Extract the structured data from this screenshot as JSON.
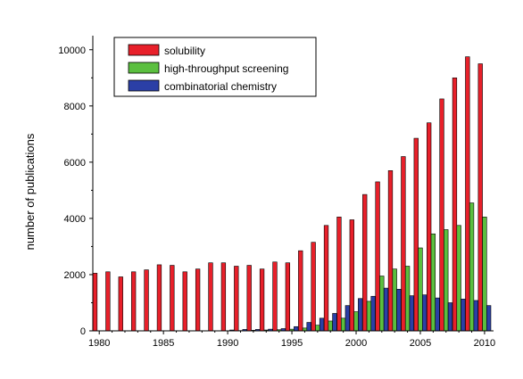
{
  "chart_data": {
    "type": "bar",
    "title": "",
    "xlabel": "",
    "ylabel": "number of publications",
    "ylim": [
      0,
      10500
    ],
    "xlim": [
      1979.5,
      2010.7
    ],
    "x_ticks": [
      1980,
      1985,
      1990,
      1995,
      2000,
      2005,
      2010
    ],
    "y_ticks": [
      0,
      2000,
      4000,
      6000,
      8000,
      10000
    ],
    "grid": false,
    "legend_position": "top-left",
    "x": [
      1980,
      1981,
      1982,
      1983,
      1984,
      1985,
      1986,
      1987,
      1988,
      1989,
      1990,
      1991,
      1992,
      1993,
      1994,
      1995,
      1996,
      1997,
      1998,
      1999,
      2000,
      2001,
      2002,
      2003,
      2004,
      2005,
      2006,
      2007,
      2008,
      2009,
      2010
    ],
    "series": [
      {
        "name": "solubility",
        "color": "#e8202a",
        "values": [
          2050,
          2100,
          1920,
          2100,
          2170,
          2350,
          2330,
          2100,
          2200,
          2420,
          2420,
          2300,
          2330,
          2200,
          2450,
          2420,
          2850,
          3150,
          3750,
          4050,
          3950,
          4850,
          5300,
          5700,
          6200,
          6850,
          7400,
          8250,
          9000,
          9750,
          9500
        ]
      },
      {
        "name": "high-throughput screening",
        "color": "#5bbf3f",
        "values": [
          0,
          0,
          0,
          0,
          0,
          0,
          0,
          0,
          0,
          0,
          0,
          10,
          20,
          30,
          40,
          60,
          100,
          200,
          350,
          450,
          680,
          1050,
          1950,
          2200,
          2300,
          2950,
          3450,
          3600,
          3750,
          4550,
          4050
        ]
      },
      {
        "name": "combinatorial chemistry",
        "color": "#2b3fa6",
        "values": [
          0,
          0,
          0,
          0,
          0,
          0,
          0,
          0,
          0,
          0,
          30,
          50,
          50,
          60,
          80,
          150,
          300,
          450,
          620,
          900,
          1150,
          1230,
          1520,
          1480,
          1250,
          1280,
          1170,
          1000,
          1130,
          1080,
          900
        ]
      }
    ]
  }
}
